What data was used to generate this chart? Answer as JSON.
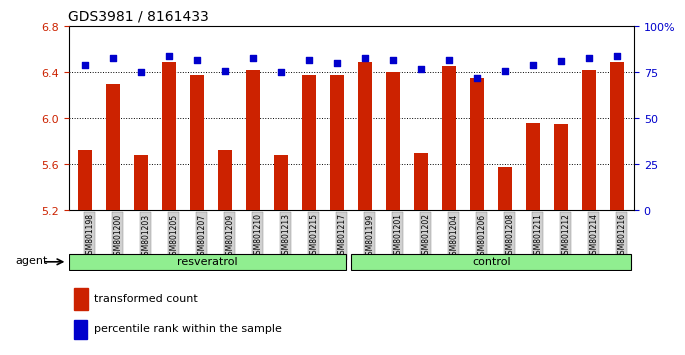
{
  "title": "GDS3981 / 8161433",
  "samples": [
    "GSM801198",
    "GSM801200",
    "GSM801203",
    "GSM801205",
    "GSM801207",
    "GSM801209",
    "GSM801210",
    "GSM801213",
    "GSM801215",
    "GSM801217",
    "GSM801199",
    "GSM801201",
    "GSM801202",
    "GSM801204",
    "GSM801206",
    "GSM801208",
    "GSM801211",
    "GSM801212",
    "GSM801214",
    "GSM801216"
  ],
  "bar_values": [
    5.73,
    6.3,
    5.68,
    6.49,
    6.38,
    5.73,
    6.42,
    5.68,
    6.38,
    6.38,
    6.49,
    6.4,
    5.7,
    6.46,
    6.35,
    5.58,
    5.96,
    5.95,
    6.42,
    6.49
  ],
  "percentile_values": [
    79,
    83,
    75,
    84,
    82,
    76,
    83,
    75,
    82,
    80,
    83,
    82,
    77,
    82,
    72,
    76,
    79,
    81,
    83,
    84
  ],
  "ylim_left": [
    5.2,
    6.8
  ],
  "ylim_right": [
    0,
    100
  ],
  "yticks_left": [
    5.2,
    5.6,
    6.0,
    6.4,
    6.8
  ],
  "yticks_right": [
    0,
    25,
    50,
    75,
    100
  ],
  "ytick_labels_right": [
    "0",
    "25",
    "50",
    "75",
    "100%"
  ],
  "bar_color": "#cc2200",
  "dot_color": "#0000cc",
  "background_color": "#ffffff",
  "plot_bg_color": "#ffffff",
  "grid_color": "#000000",
  "resveratrol_count": 10,
  "control_count": 10,
  "group_label_resveratrol": "resveratrol",
  "group_label_control": "control",
  "agent_label": "agent",
  "legend_bar_label": "transformed count",
  "legend_dot_label": "percentile rank within the sample",
  "tick_label_color": "#cc2200",
  "right_tick_color": "#0000cc",
  "xticklabel_bg": "#d0d0d0",
  "group_bg_color": "#90ee90",
  "bar_bottom": 5.2,
  "bar_width": 0.5
}
